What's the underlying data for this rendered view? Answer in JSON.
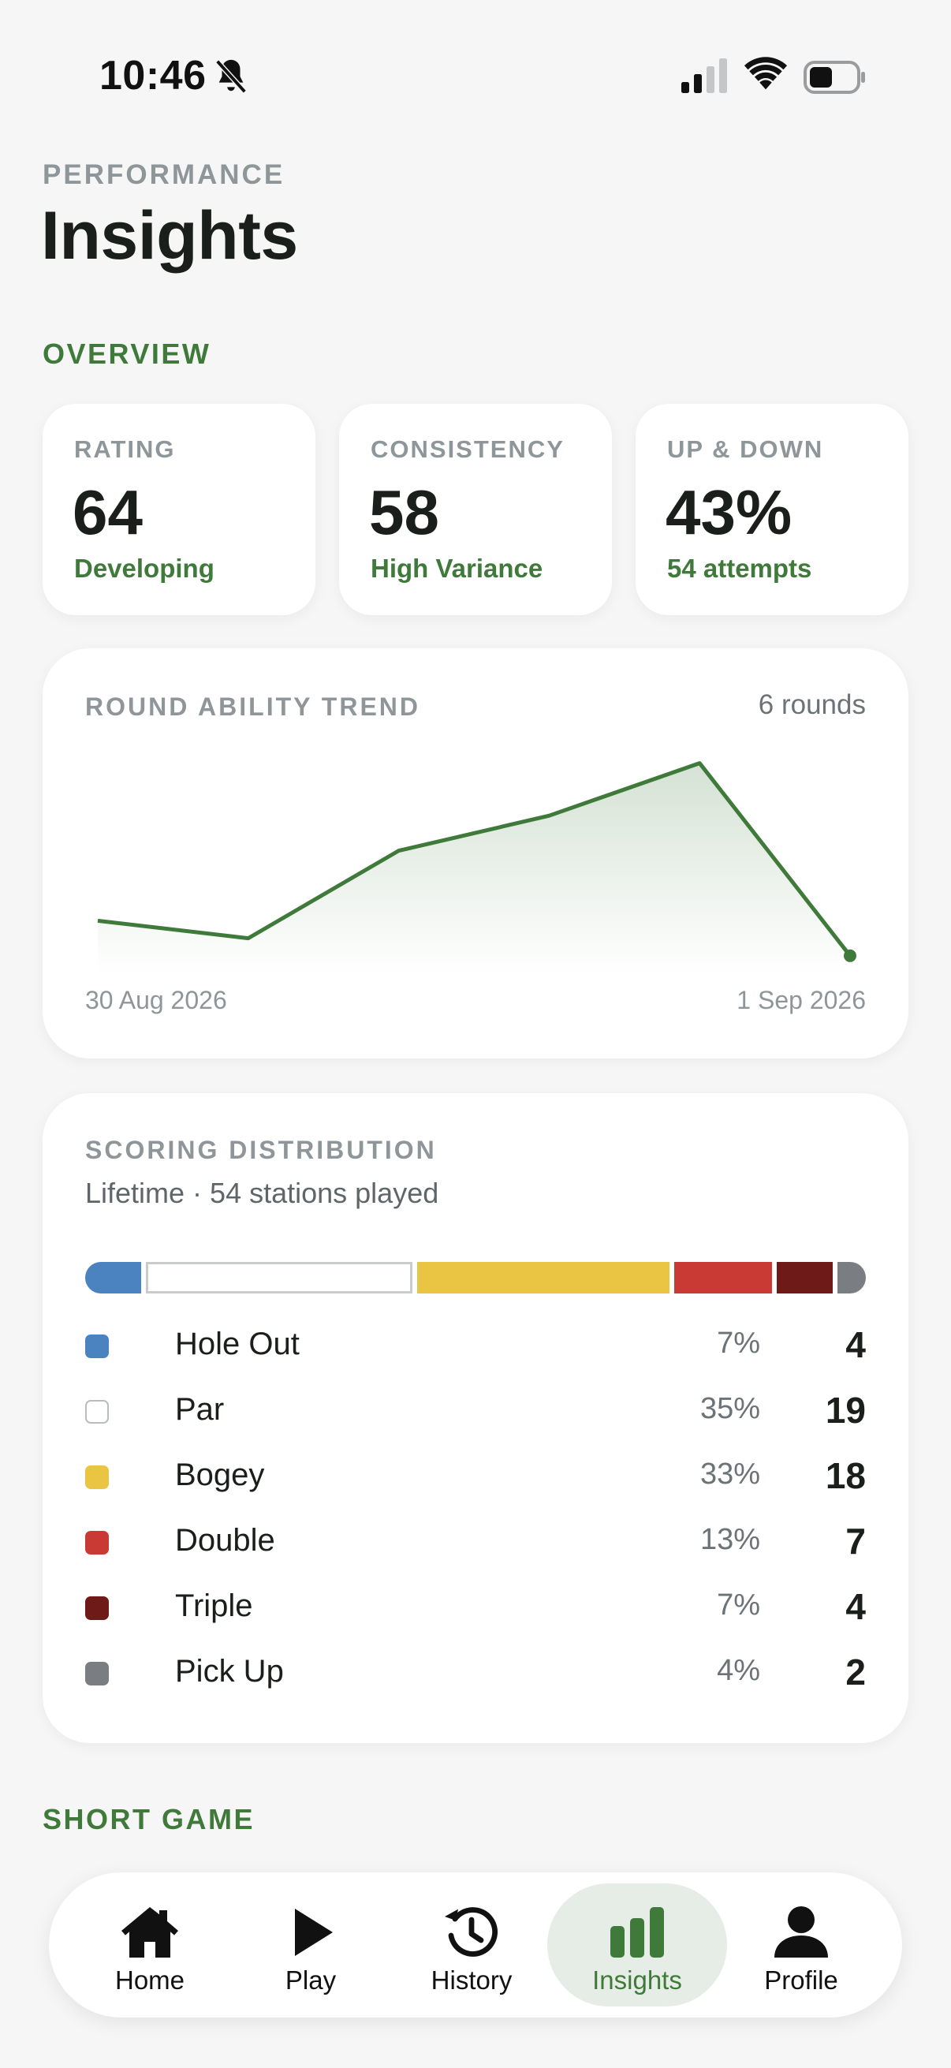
{
  "status_bar": {
    "time": "10:46"
  },
  "header": {
    "eyebrow": "PERFORMANCE",
    "title": "Insights"
  },
  "sections": {
    "overview": "OVERVIEW",
    "short_game": "SHORT GAME"
  },
  "stats": [
    {
      "label": "RATING",
      "value": "64",
      "sub": "Developing"
    },
    {
      "label": "CONSISTENCY",
      "value": "58",
      "sub": "High Variance"
    },
    {
      "label": "UP & DOWN",
      "value": "43%",
      "sub": "54 attempts"
    }
  ],
  "trend": {
    "title": "ROUND ABILITY TREND",
    "count_label": "6 rounds",
    "start_date": "30 Aug 2026",
    "end_date": "1 Sep 2026",
    "chart_data": {
      "type": "area",
      "title": "ROUND ABILITY TREND",
      "values": [
        39,
        36,
        51,
        57,
        66,
        33
      ],
      "ylim": [
        30,
        70
      ],
      "grid": false,
      "color": "#3f7a3b"
    }
  },
  "distribution": {
    "title": "SCORING DISTRIBUTION",
    "subtitle": "Lifetime · 54 stations played",
    "items": [
      {
        "name": "Hole Out",
        "pct": "7%",
        "count": "4",
        "value": 4,
        "color": "#4a83c0"
      },
      {
        "name": "Par",
        "pct": "35%",
        "count": "19",
        "value": 19,
        "color": "#ffffff"
      },
      {
        "name": "Bogey",
        "pct": "33%",
        "count": "18",
        "value": 18,
        "color": "#e9c543"
      },
      {
        "name": "Double",
        "pct": "13%",
        "count": "7",
        "value": 7,
        "color": "#c93a34"
      },
      {
        "name": "Triple",
        "pct": "7%",
        "count": "4",
        "value": 4,
        "color": "#6e1a18"
      },
      {
        "name": "Pick Up",
        "pct": "4%",
        "count": "2",
        "value": 2,
        "color": "#7a7e82"
      }
    ]
  },
  "tabs": [
    {
      "label": "Home",
      "icon": "house-icon",
      "active": false
    },
    {
      "label": "Play",
      "icon": "play-icon",
      "active": false
    },
    {
      "label": "History",
      "icon": "history-icon",
      "active": false
    },
    {
      "label": "Insights",
      "icon": "bar-chart-icon",
      "active": true
    },
    {
      "label": "Profile",
      "icon": "person-icon",
      "active": false
    }
  ],
  "colors": {
    "accent": "#3f7a3b",
    "muted": "#8f969a",
    "background": "#f5f6f5"
  }
}
